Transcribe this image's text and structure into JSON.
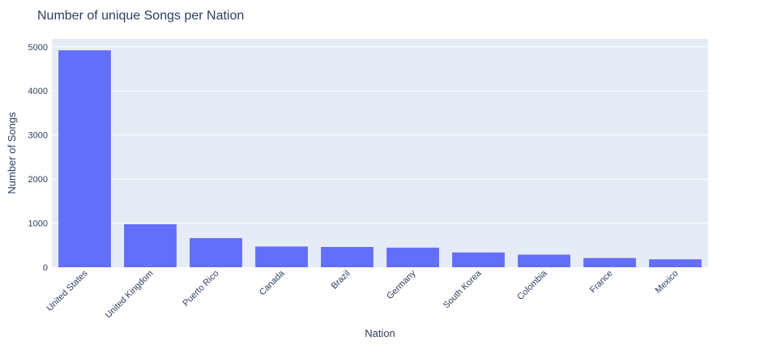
{
  "chart_data": {
    "type": "bar",
    "title": "Number of unique Songs per Nation",
    "xlabel": "Nation",
    "ylabel": "Number of Songs",
    "categories": [
      "United States",
      "United Kingdom",
      "Puerto Rico",
      "Canada",
      "Brazil",
      "Germany",
      "South Korea",
      "Colombia",
      "France",
      "Mexico"
    ],
    "values": [
      4920,
      975,
      660,
      470,
      460,
      445,
      335,
      285,
      210,
      180
    ],
    "ylim": [
      0,
      5180
    ],
    "yticks": [
      0,
      1000,
      2000,
      3000,
      4000,
      5000
    ],
    "grid": true,
    "colors": {
      "bar": "#636efa",
      "plot_bg": "#e5ecf6",
      "grid": "#ffffff",
      "text": "#2a3f5f"
    }
  }
}
